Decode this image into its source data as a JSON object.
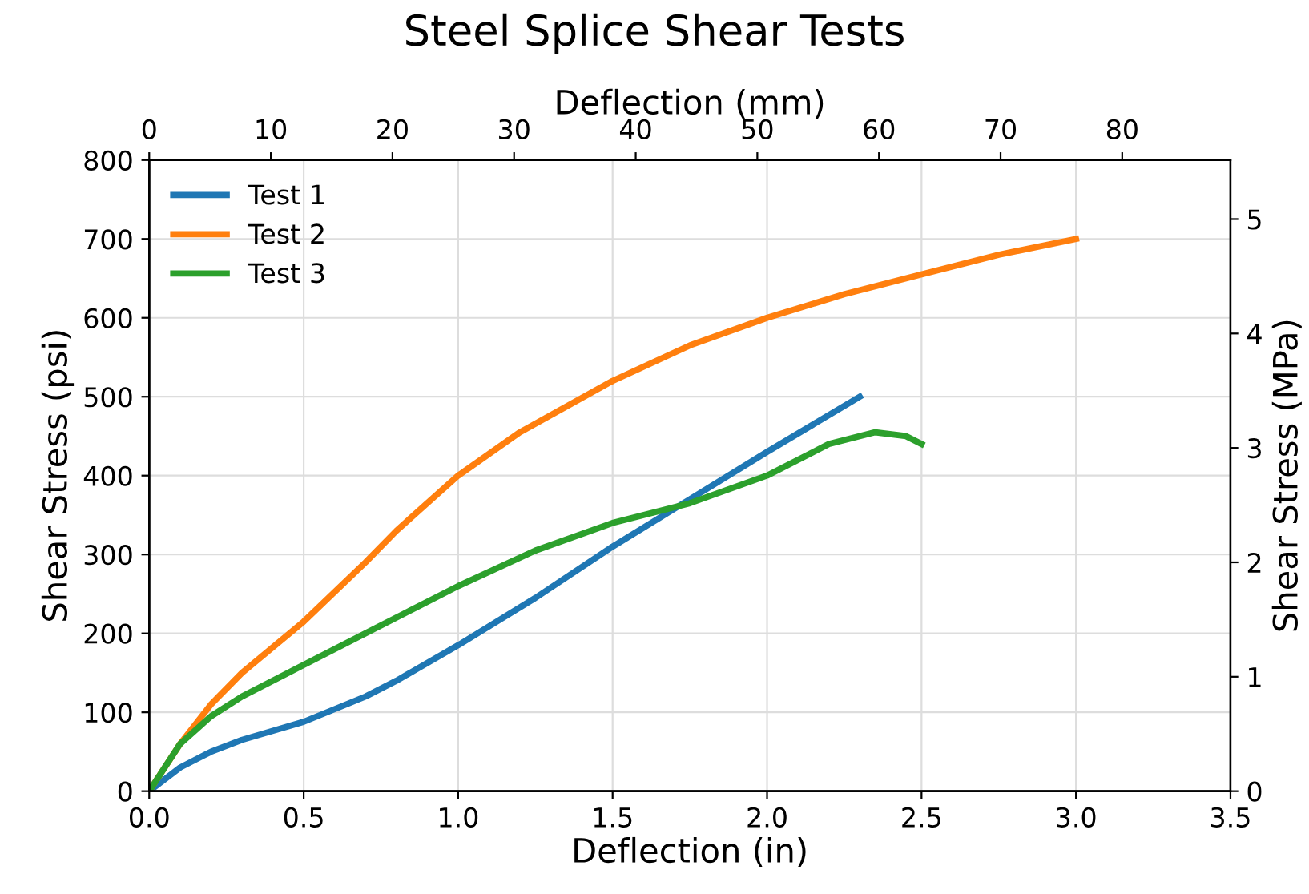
{
  "chart_data": {
    "type": "line",
    "title": "Steel Splice Shear Tests",
    "xlabel": "Deflection (in)",
    "ylabel": "Shear Stress (psi)",
    "x2label": "Deflection (mm)",
    "y2label": "Shear Stress (MPa)",
    "xlim": [
      0,
      3.5
    ],
    "xticks": [
      {
        "value": 0,
        "label": "0.0"
      },
      0.5,
      {
        "value": 1,
        "label": "1.0"
      },
      1.5,
      {
        "value": 2,
        "label": "2.0"
      },
      2.5,
      {
        "value": 3,
        "label": "3.0"
      },
      3.5
    ],
    "ylim": [
      0,
      800
    ],
    "yticks": [
      0,
      100,
      200,
      300,
      400,
      500,
      600,
      700,
      800
    ],
    "x2lim": [
      0,
      88.9
    ],
    "x2ticks": [
      0,
      10,
      20,
      30,
      40,
      50,
      60,
      70,
      80
    ],
    "y2lim": [
      0,
      5.516
    ],
    "y2ticks": [
      0,
      1,
      2,
      3,
      4,
      5
    ],
    "grid": true,
    "legend": "top left",
    "marker": "none",
    "line_style": "solid",
    "series": [
      {
        "name": "Test 1",
        "color": "#1f77b4",
        "x": [
          0,
          0.1,
          0.2,
          0.3,
          0.5,
          0.7,
          0.8,
          1.0,
          1.25,
          1.5,
          1.75,
          2.0,
          2.3
        ],
        "values": [
          0,
          30,
          50,
          65,
          88,
          120,
          140,
          185,
          245,
          310,
          370,
          430,
          500
        ]
      },
      {
        "name": "Test 2",
        "color": "#ff7f0e",
        "x": [
          0,
          0.1,
          0.2,
          0.3,
          0.5,
          0.7,
          0.8,
          1.0,
          1.2,
          1.5,
          1.75,
          2.0,
          2.25,
          2.5,
          2.75,
          3.0
        ],
        "values": [
          0,
          60,
          110,
          150,
          215,
          290,
          330,
          400,
          455,
          520,
          565,
          600,
          630,
          655,
          680,
          700
        ]
      },
      {
        "name": "Test 3",
        "color": "#2ca02c",
        "x": [
          0,
          0.1,
          0.2,
          0.3,
          0.5,
          0.75,
          1.0,
          1.25,
          1.5,
          1.75,
          2.0,
          2.2,
          2.35,
          2.45,
          2.5
        ],
        "values": [
          0,
          60,
          95,
          120,
          160,
          210,
          260,
          305,
          340,
          365,
          400,
          440,
          455,
          450,
          440
        ]
      }
    ]
  }
}
